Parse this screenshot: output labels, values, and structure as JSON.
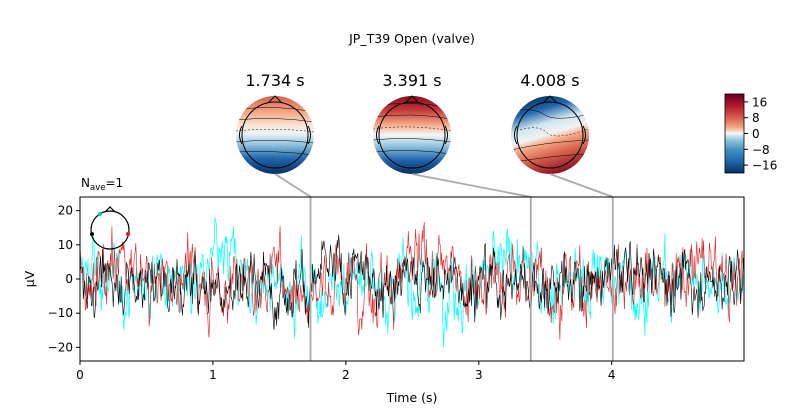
{
  "chart_data": {
    "type": "line",
    "title": "JP_T39 Open (valve)",
    "nave_label": "N",
    "nave_sub": "ave",
    "nave_value": "=1",
    "xlabel": "Time (s)",
    "ylabel": "µV",
    "xlim": [
      0,
      4.995
    ],
    "ylim": [
      -24,
      24
    ],
    "x_ticks": [
      0,
      1,
      2,
      3,
      4
    ],
    "x_tick_labels": [
      "0",
      "1",
      "2",
      "3",
      "4"
    ],
    "y_ticks": [
      -20,
      -10,
      0,
      10,
      20
    ],
    "y_tick_labels": [
      "−20",
      "−10",
      "0",
      "10",
      "20"
    ],
    "grid": false,
    "series_colors": [
      "#00ffff",
      "#e31a1c",
      "#000000"
    ],
    "series_amplitude_uV": [
      7,
      7,
      6
    ],
    "topomaps": [
      {
        "time": 1.734,
        "label": "1.734 s",
        "pattern": "red-front-blue-back"
      },
      {
        "time": 3.391,
        "label": "3.391 s",
        "pattern": "red-front-blue-back-strong"
      },
      {
        "time": 4.008,
        "label": "4.008 s",
        "pattern": "blue-front-red-back"
      }
    ],
    "colorbar": {
      "ticks": [
        16,
        8,
        0,
        -8,
        -16
      ],
      "tick_labels": [
        "16",
        "8",
        "0",
        "−8",
        "−16"
      ],
      "range": [
        -20,
        20
      ],
      "colormap": "RdBu_r"
    }
  }
}
